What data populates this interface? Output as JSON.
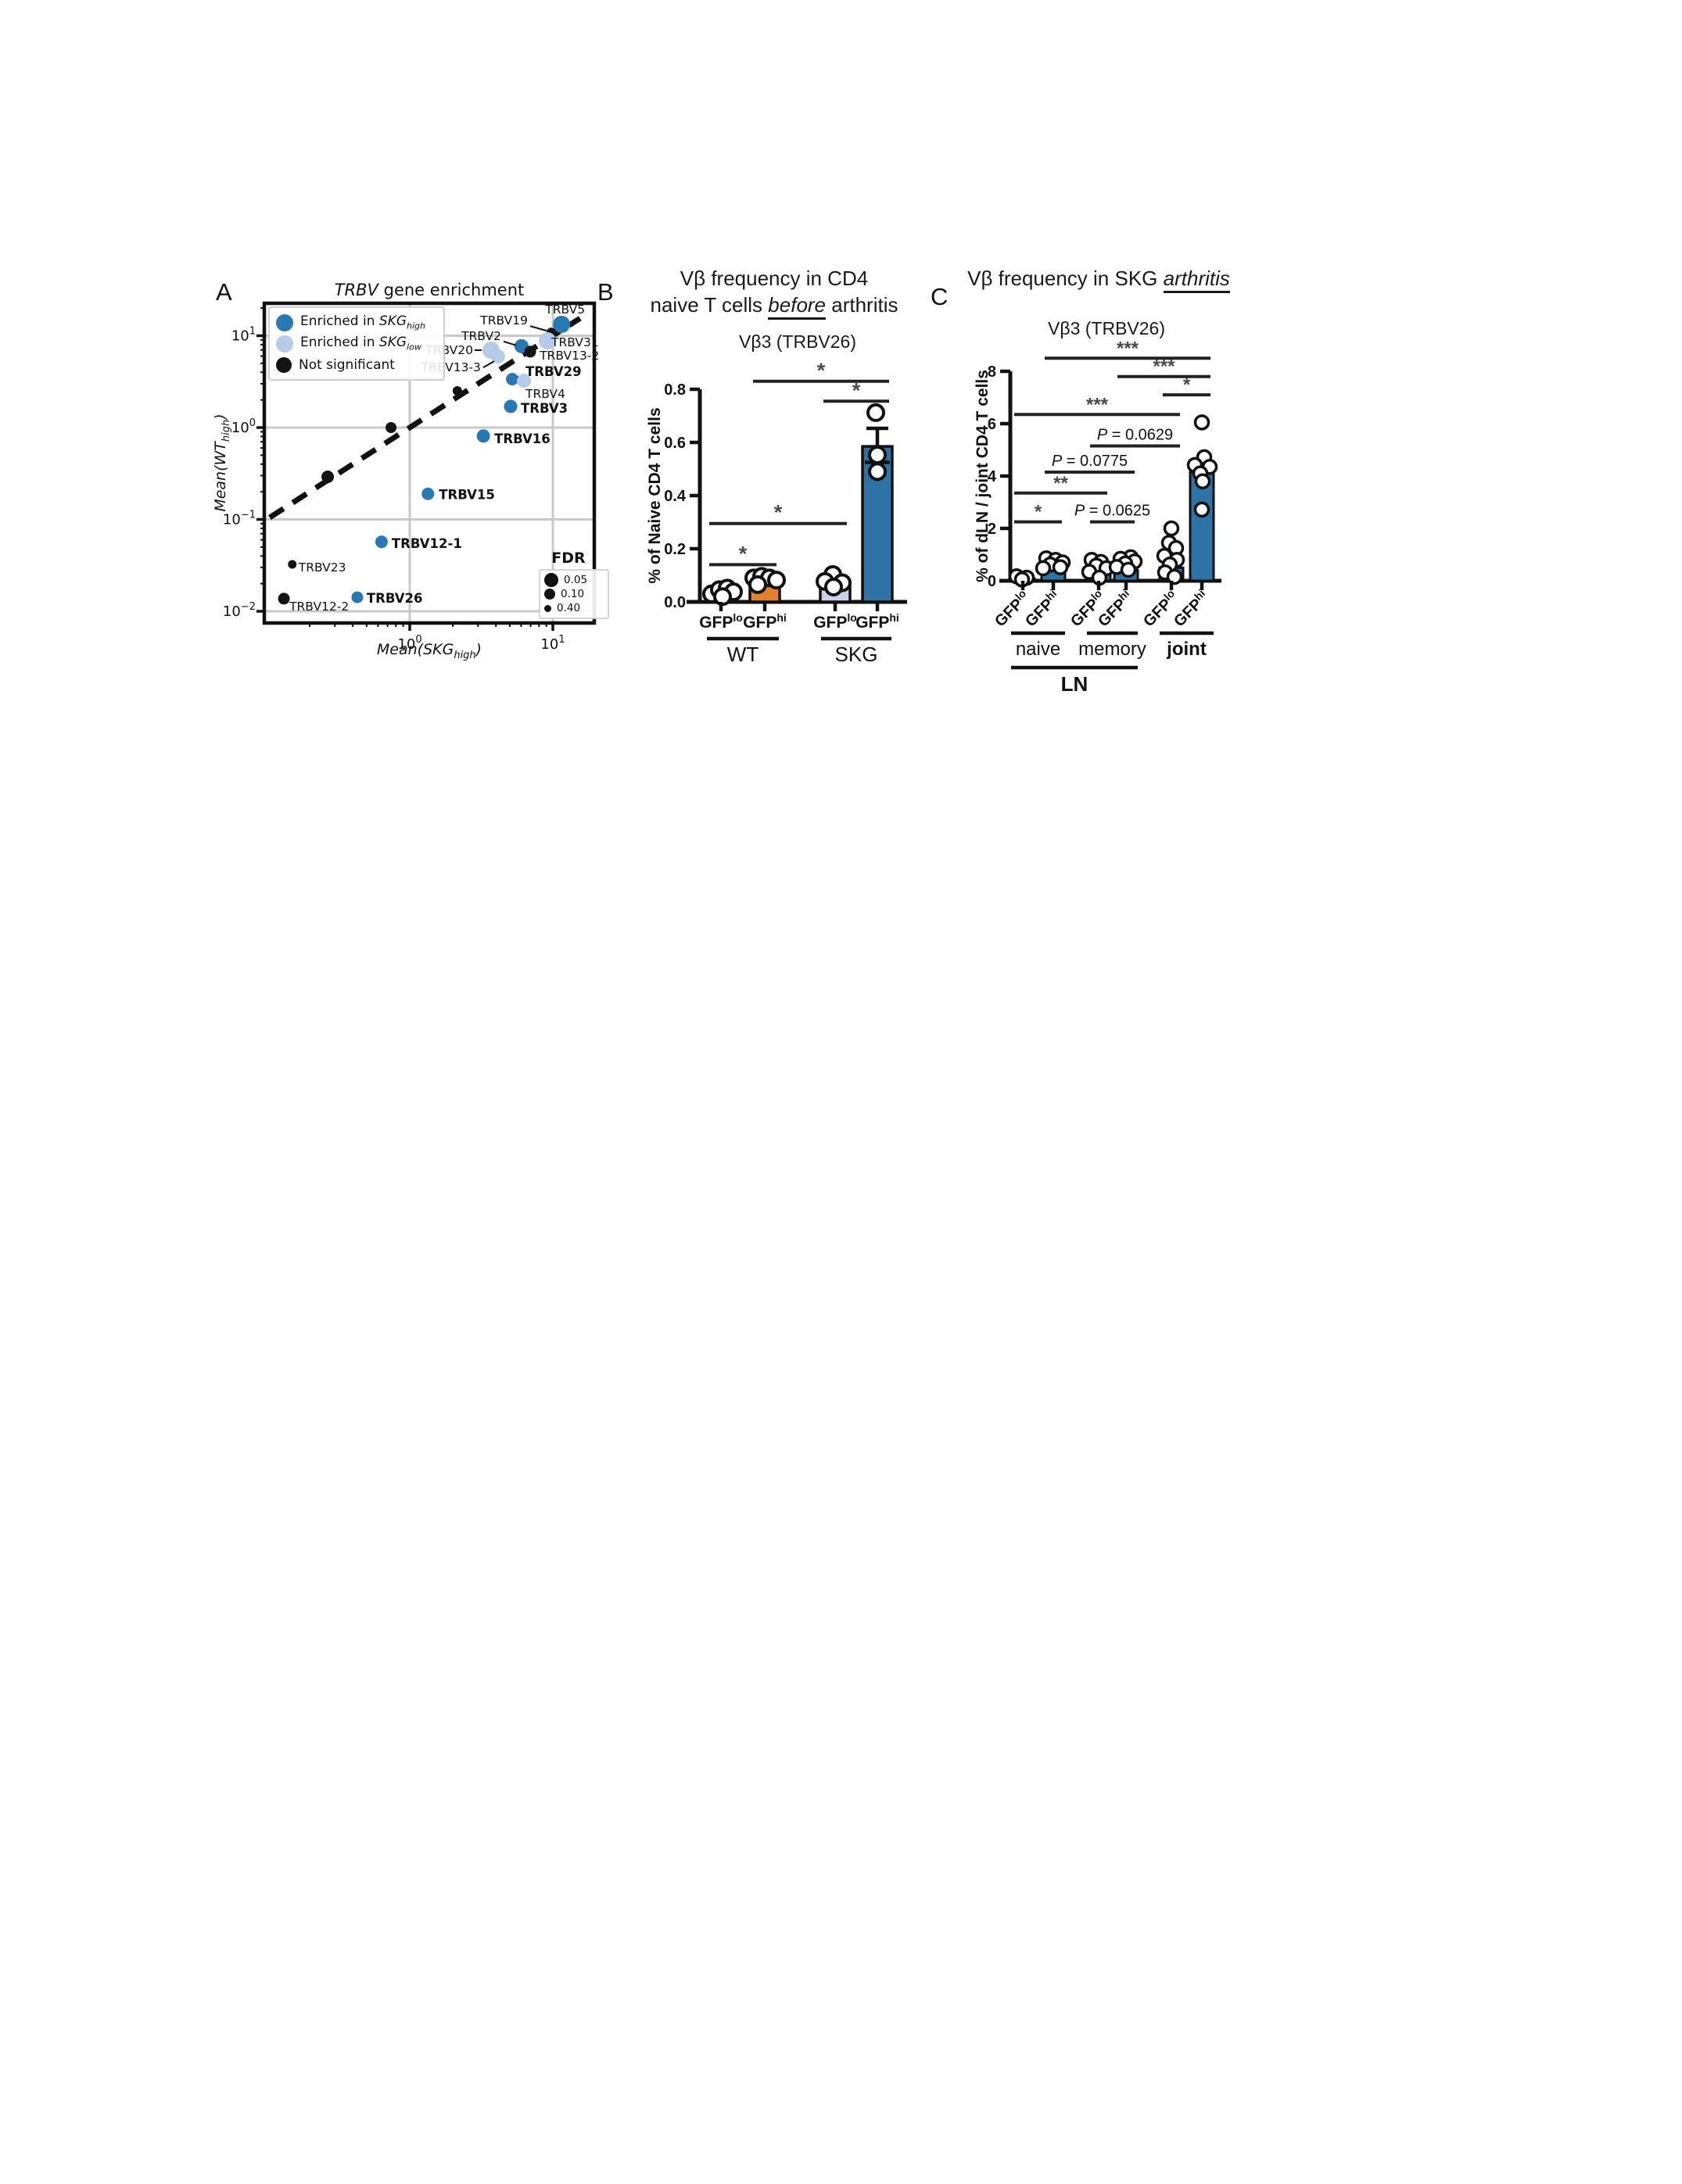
{
  "palette": {
    "skg_high_blue": "#2878b4",
    "skg_low_lightblue": "#b5cbe8",
    "not_sig_black": "#141414",
    "wt_lo_pale_orange": "#f2c795",
    "wt_hi_orange": "#e1812c",
    "skg_lo_lightblue_bar": "#c7d3e8",
    "steel_blue_bar": "#2e73a6",
    "grid_gray": "#c9c9c9",
    "sig_gray": "#4a4a4a"
  },
  "panels": {
    "A": {
      "letter": "A",
      "title": {
        "emph": "TRBV",
        "rest": " gene enrichment"
      },
      "xlabel": {
        "pre": "Mean(",
        "emph": "SKG",
        "sub": "high",
        "post": ")"
      },
      "ylabel": {
        "pre": "Mean(",
        "emph": "WT",
        "sub": "high",
        "post": ")"
      },
      "legend": {
        "items": [
          {
            "color": "#2878b4",
            "pre": "Enriched in ",
            "emph": "SKG",
            "sub": "high"
          },
          {
            "color": "#b5cbe8",
            "pre": "Enriched in ",
            "emph": "SKG",
            "sub": "low"
          },
          {
            "color": "#141414",
            "pre": "Not significant",
            "emph": "",
            "sub": ""
          }
        ]
      },
      "fdr": {
        "title": "FDR",
        "entries": [
          {
            "r": 9,
            "label": "0.05"
          },
          {
            "r": 7,
            "label": "0.10"
          },
          {
            "r": 4.5,
            "label": "0.40"
          }
        ]
      }
    },
    "B": {
      "letter": "B",
      "title": {
        "line1": "Vβ frequency in CD4",
        "line2_pre": "naive T cells ",
        "line2_emph": "before",
        "line2_post": " arthritis"
      },
      "subtitle": "Vβ3 (TRBV26)",
      "ylabel": "% of Naive CD4 T cells"
    },
    "C": {
      "letter": "C",
      "title": {
        "pre": "Vβ frequency in SKG ",
        "emph": "arthritis",
        "post": ""
      },
      "subtitle": "Vβ3 (TRBV26)",
      "ylabel": "% of dLN /  joint CD4 T cells"
    }
  },
  "chart_data": [
    {
      "panel": "A",
      "type": "scatter",
      "xscale": "log",
      "yscale": "log",
      "title": "TRBV gene enrichment",
      "xlabel": "Mean(SKG_high)",
      "ylabel": "Mean(WT_high)",
      "xlim": [
        0.097,
        19.5
      ],
      "ylim": [
        0.0074,
        22.5
      ],
      "xticks": [
        {
          "v": 1,
          "exp": "0"
        },
        {
          "v": 10,
          "exp": "1"
        }
      ],
      "yticks": [
        {
          "v": 10,
          "exp": "1"
        },
        {
          "v": 1,
          "exp": "0"
        },
        {
          "v": 0.1,
          "exp": "−1"
        },
        {
          "v": 0.01,
          "exp": "−2"
        }
      ],
      "grid": true,
      "legend_position": "upper-left",
      "identity_line": {
        "x1": 0.105,
        "y1": 0.105,
        "x2": 15.5,
        "y2": 15.5
      },
      "points": [
        {
          "gene": "TRBV5",
          "x": 11.5,
          "y": 13.3,
          "color": "#2878b4",
          "r": 11,
          "bold": false,
          "anchor": "end",
          "lx": 30,
          "ly": -14
        },
        {
          "gene": "TRBV19",
          "x": 9.75,
          "y": 10.9,
          "color": "#141414",
          "r": 6,
          "bold": false,
          "anchor": "end",
          "lx": -30,
          "ly": -10,
          "leader": [
            -27,
            -8,
            -6,
            -2
          ]
        },
        {
          "gene": "TRBV31",
          "x": 9.16,
          "y": 8.8,
          "color": "#b5cbe8",
          "r": 11,
          "bold": false,
          "anchor": "start",
          "lx": 5,
          "ly": 7
        },
        {
          "gene": "TRBV2",
          "x": 6.04,
          "y": 7.7,
          "color": "#2878b4",
          "r": 9,
          "bold": false,
          "anchor": "end",
          "lx": -26,
          "ly": -8,
          "leader": [
            -23,
            -6,
            -7,
            -1
          ]
        },
        {
          "gene": "TRBV13-2",
          "x": 6.95,
          "y": 6.7,
          "color": "#141414",
          "r": 7.5,
          "bold": false,
          "anchor": "start",
          "lx": 12,
          "ly": 10
        },
        {
          "gene": "TRBV20",
          "x": 3.7,
          "y": 6.96,
          "color": "#b5cbe8",
          "r": 11,
          "bold": false,
          "anchor": "end",
          "lx": -23,
          "ly": 5,
          "leader": [
            -21,
            0,
            -12,
            0
          ]
        },
        {
          "gene": "TRBV13-3",
          "x": 4.14,
          "y": 5.94,
          "color": "#b5cbe8",
          "r": 9,
          "bold": false,
          "anchor": "end",
          "lx": -22,
          "ly": 19,
          "leader": [
            -19,
            14,
            -5,
            6
          ]
        },
        {
          "gene": "TRBV29",
          "x": 5.2,
          "y": 3.37,
          "color": "#2878b4",
          "r": 8,
          "bold": true,
          "anchor": "start",
          "lx": 17,
          "ly": -4,
          "leader": [
            15,
            -6,
            6,
            -2
          ]
        },
        {
          "gene": "TRBV4",
          "x": 6.28,
          "y": 3.24,
          "color": "#b5cbe8",
          "r": 9,
          "bold": false,
          "anchor": "start",
          "lx": 2,
          "ly": 22
        },
        {
          "gene": "TRBV3",
          "x": 5.07,
          "y": 1.7,
          "color": "#2878b4",
          "r": 8.5,
          "bold": true,
          "anchor": "start",
          "lx": 13,
          "ly": 8
        },
        {
          "gene": "TRBV16",
          "x": 3.27,
          "y": 0.81,
          "color": "#2878b4",
          "r": 8.5,
          "bold": true,
          "anchor": "start",
          "lx": 14,
          "ly": 9
        },
        {
          "gene": "TRBV15",
          "x": 1.34,
          "y": 0.19,
          "color": "#2878b4",
          "r": 8,
          "bold": true,
          "anchor": "start",
          "lx": 14,
          "ly": 7
        },
        {
          "gene": "TRBV12-1",
          "x": 0.635,
          "y": 0.057,
          "color": "#2878b4",
          "r": 8,
          "bold": true,
          "anchor": "start",
          "lx": 13,
          "ly": 8
        },
        {
          "gene": "TRBV23",
          "x": 0.151,
          "y": 0.0324,
          "color": "#141414",
          "r": 5.5,
          "bold": false,
          "anchor": "start",
          "lx": 8,
          "ly": 9
        },
        {
          "gene": "TRBV12-2",
          "x": 0.132,
          "y": 0.0137,
          "color": "#141414",
          "r": 7.5,
          "bold": false,
          "anchor": "start",
          "lx": 7,
          "ly": 15
        },
        {
          "gene": "TRBV26",
          "x": 0.43,
          "y": 0.0142,
          "color": "#2878b4",
          "r": 7.5,
          "bold": true,
          "anchor": "start",
          "lx": 12,
          "ly": 7
        },
        {
          "gene": "",
          "x": 0.267,
          "y": 0.291,
          "color": "#141414",
          "r": 8
        },
        {
          "gene": "",
          "x": 0.74,
          "y": 1.0,
          "color": "#141414",
          "r": 7
        },
        {
          "gene": "",
          "x": 2.15,
          "y": 2.51,
          "color": "#141414",
          "r": 6
        }
      ],
      "fdr_legend": {
        "title": "FDR",
        "sizes": [
          0.05,
          0.1,
          0.4
        ]
      }
    },
    {
      "panel": "B",
      "type": "bar",
      "title": "Vβ3 (TRBV26)",
      "ylabel": "% of Naive CD4 T cells",
      "ylim": [
        0,
        0.8
      ],
      "yticks": [
        {
          "v": 0,
          "label": "0.0"
        },
        {
          "v": 0.2,
          "label": "0.2"
        },
        {
          "v": 0.4,
          "label": "0.4"
        },
        {
          "v": 0.6,
          "label": "0.6"
        },
        {
          "v": 0.8,
          "label": "0.8"
        }
      ],
      "groups": [
        {
          "label": "WT",
          "bold": false,
          "bars": [
            {
              "tick": {
                "base": "GFP",
                "sup": "lo"
              },
              "value": 0.032,
              "color": "#f2c795",
              "points": [
                [
                  -12,
                  0.03
                ],
                [
                  -2,
                  0.046
                ],
                [
                  8,
                  0.052
                ],
                [
                  16,
                  0.038
                ],
                [
                  2,
                  0.02
                ]
              ]
            },
            {
              "tick": {
                "base": "GFP",
                "sup": "hi"
              },
              "value": 0.085,
              "color": "#e1812c",
              "points": [
                [
                  -14,
                  0.09
                ],
                [
                  -4,
                  0.096
                ],
                [
                  6,
                  0.09
                ],
                [
                  15,
                  0.082
                ],
                [
                  -9,
                  0.065
                ]
              ]
            }
          ]
        },
        {
          "label": "SKG",
          "bold": false,
          "bars": [
            {
              "tick": {
                "base": "GFP",
                "sup": "lo"
              },
              "value": 0.062,
              "color": "#c7d3e8",
              "mean": 0.088,
              "points": [
                [
                  -3,
                  0.103
                ],
                [
                  -13,
                  0.077
                ],
                [
                  9,
                  0.072
                ],
                [
                  -2,
                  0.056
                ]
              ]
            },
            {
              "tick": {
                "base": "GFP",
                "sup": "hi"
              },
              "value": 0.585,
              "color": "#2e73a6",
              "mean": 0.525,
              "whisker": 0.653,
              "points": [
                [
                  -2,
                  0.712
                ],
                [
                  0,
                  0.553
                ],
                [
                  0,
                  0.49
                ]
              ]
            }
          ]
        }
      ],
      "sig": [
        {
          "from": 0,
          "to": 1,
          "y": 0.14,
          "label": "*"
        },
        {
          "from": 0,
          "to": 2,
          "y": 0.295,
          "label": "*"
        },
        {
          "from": 2,
          "to": 3,
          "y": 0.755,
          "label": "*"
        },
        {
          "from": 1,
          "to": 3,
          "y": 0.83,
          "label": "*"
        }
      ]
    },
    {
      "panel": "C",
      "type": "bar",
      "title": "Vβ3 (TRBV26)",
      "ylabel": "% of dLN /  joint CD4 T cells",
      "ylim": [
        0,
        8
      ],
      "yticks": [
        {
          "v": 0,
          "label": "0"
        },
        {
          "v": 2,
          "label": "2"
        },
        {
          "v": 4,
          "label": "4"
        },
        {
          "v": 6,
          "label": "6"
        },
        {
          "v": 8,
          "label": "8"
        }
      ],
      "rotated_ticks": true,
      "groups": [
        {
          "label": "naive",
          "bold": false,
          "bars": [
            {
              "tick": {
                "base": "GFP",
                "sup": "lo"
              },
              "value": 0.08,
              "color": "#2e73a6",
              "points": [
                [
                  -8,
                  0.17
                ],
                [
                  5,
                  0.12
                ],
                [
                  -1,
                  0.05
                ]
              ]
            },
            {
              "tick": {
                "base": "GFP",
                "sup": "hi"
              },
              "value": 0.38,
              "color": "#2e73a6",
              "points": [
                [
                  -9,
                  0.86
                ],
                [
                  3,
                  0.8
                ],
                [
                  12,
                  0.7
                ],
                [
                  -4,
                  0.62
                ],
                [
                  9,
                  0.52
                ],
                [
                  -13,
                  0.48
                ]
              ]
            }
          ]
        },
        {
          "label": "memory",
          "bold": false,
          "bars": [
            {
              "tick": {
                "base": "GFP",
                "sup": "lo"
              },
              "value": 0.32,
              "color": "#2e73a6",
              "points": [
                [
                  -9,
                  0.8
                ],
                [
                  3,
                  0.72
                ],
                [
                  -3,
                  0.58
                ],
                [
                  10,
                  0.48
                ],
                [
                  -12,
                  0.34
                ],
                [
                  1,
                  0.12
                ]
              ]
            },
            {
              "tick": {
                "base": "GFP",
                "sup": "hi"
              },
              "value": 0.4,
              "color": "#2e73a6",
              "points": [
                [
                  6,
                  0.9
                ],
                [
                  -7,
                  0.84
                ],
                [
                  11,
                  0.74
                ],
                [
                  -1,
                  0.66
                ],
                [
                  -12,
                  0.53
                ],
                [
                  3,
                  0.42
                ]
              ]
            }
          ]
        },
        {
          "label": "joint",
          "bold": true,
          "bars": [
            {
              "tick": {
                "base": "GFP",
                "sup": "lo"
              },
              "value": 0.5,
              "color": "#2e73a6",
              "points": [
                [
                  0,
                  2.0
                ],
                [
                  -3,
                  1.45
                ],
                [
                  6,
                  1.25
                ],
                [
                  -9,
                  0.95
                ],
                [
                  7,
                  0.8
                ],
                [
                  -2,
                  0.62
                ],
                [
                  -8,
                  0.32
                ],
                [
                  4,
                  0.15
                ]
              ]
            },
            {
              "tick": {
                "base": "GFP",
                "sup": "hi"
              },
              "value": 4.15,
              "color": "#2e73a6",
              "whisker": 4.45,
              "points": [
                [
                  0,
                  6.05
                ],
                [
                  3,
                  4.72
                ],
                [
                  -9,
                  4.42
                ],
                [
                  10,
                  4.35
                ],
                [
                  -2,
                  4.1
                ],
                [
                  1,
                  3.8
                ],
                [
                  0,
                  2.72
                ]
              ]
            }
          ]
        }
      ],
      "supergroup": {
        "label": "LN",
        "from_group": 0,
        "to_group": 1
      },
      "sig": [
        {
          "from": 0,
          "to": 1,
          "y": 2.25,
          "label": "*"
        },
        {
          "from": 2,
          "to": 3,
          "y": 2.25,
          "label": "P = 0.0625",
          "p": true
        },
        {
          "from": 0,
          "to": 2,
          "y": 3.35,
          "label": "**"
        },
        {
          "from": 1,
          "to": 3,
          "y": 4.15,
          "label": "P = 0.0775",
          "p": true
        },
        {
          "from": 2,
          "to": 4,
          "y": 5.15,
          "label": "P = 0.0629",
          "p": true
        },
        {
          "from": 0,
          "to": 4,
          "y": 6.35,
          "label": "***"
        },
        {
          "from": 4,
          "to": 5,
          "y": 7.1,
          "label": "*"
        },
        {
          "from": 3,
          "to": 5,
          "y": 7.8,
          "label": "***"
        },
        {
          "from": 1,
          "to": 5,
          "y": 8.5,
          "label": "***"
        }
      ]
    }
  ]
}
